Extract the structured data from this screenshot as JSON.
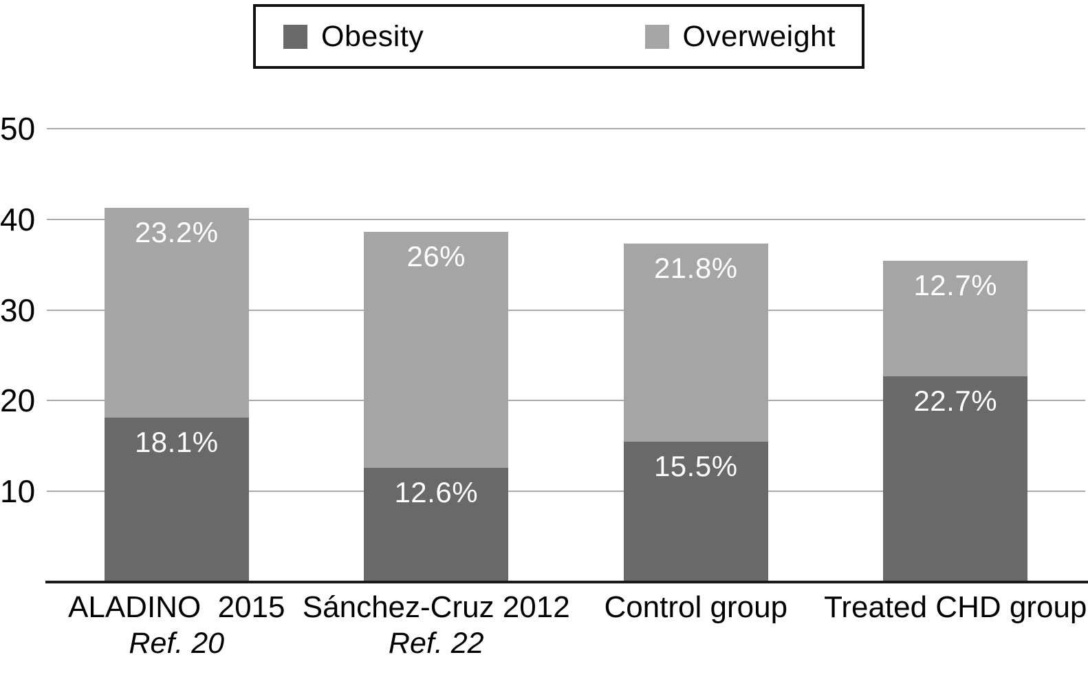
{
  "chart_data": {
    "type": "bar",
    "subtype": "stacked",
    "title": "",
    "categories": [
      {
        "label": "ALADINO  2015",
        "sublabel": "Ref. 20"
      },
      {
        "label": "Sánchez-Cruz 2012",
        "sublabel": "Ref. 22"
      },
      {
        "label": "Control group",
        "sublabel": ""
      },
      {
        "label": "Treated CHD group",
        "sublabel": ""
      }
    ],
    "series": [
      {
        "name": "Obesity",
        "color": "#696969",
        "values": [
          18.1,
          12.6,
          15.5,
          22.7
        ],
        "data_labels": [
          "18.1%",
          "12.6%",
          "15.5%",
          "22.7%"
        ]
      },
      {
        "name": "Overweight",
        "color": "#a5a5a5",
        "values": [
          23.2,
          26.0,
          21.8,
          12.7
        ],
        "data_labels": [
          "23.2%",
          "26%",
          "21.8%",
          "12.7%"
        ]
      }
    ],
    "stack_totals": [
      41.3,
      38.6,
      37.3,
      35.4
    ],
    "y_ticks": [
      {
        "label": "50",
        "value": 50
      },
      {
        "label": "40",
        "value": 40
      },
      {
        "label": "30",
        "value": 30
      },
      {
        "label": "20",
        "value": 20
      },
      {
        "label": "10",
        "value": 10
      }
    ],
    "ylim": [
      0,
      50
    ],
    "xlabel": "",
    "ylabel": "",
    "grid": true,
    "legend_position": "top-center"
  },
  "colors": {
    "background": "#ffffff",
    "grid": "#a9a9a9",
    "axis": "#1a1a1a",
    "text": "#000000",
    "bar_label_text": "#ffffff",
    "legend_border": "#111111"
  }
}
